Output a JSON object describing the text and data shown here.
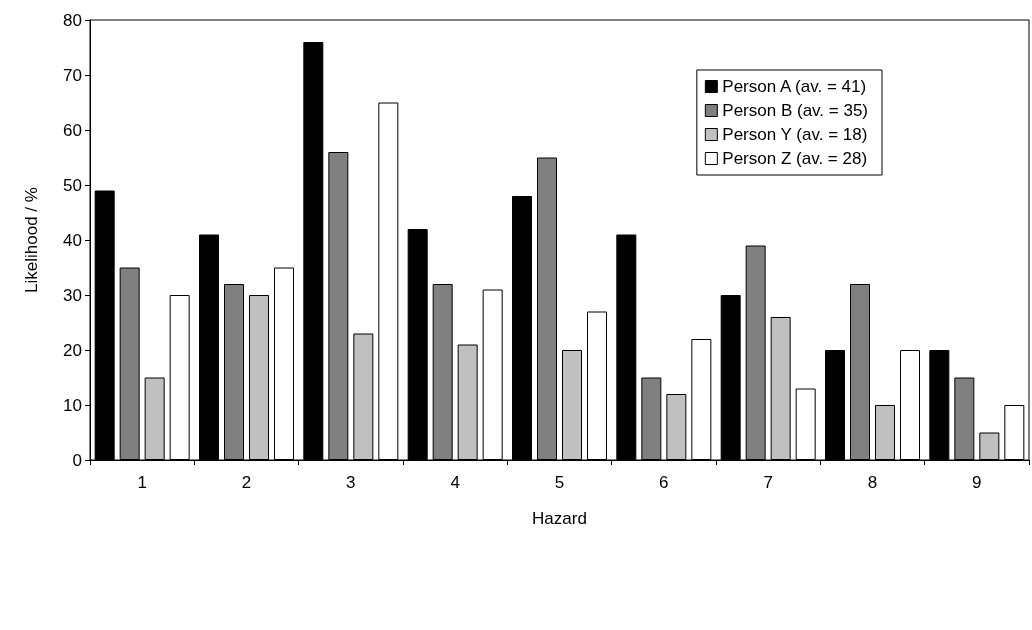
{
  "chart_data": {
    "type": "bar",
    "xlabel": "Hazard",
    "ylabel": "Likelihood / %",
    "categories": [
      "1",
      "2",
      "3",
      "4",
      "5",
      "6",
      "7",
      "8",
      "9"
    ],
    "series": [
      {
        "name": "Person A (av. = 41)",
        "color": "#000000",
        "values": [
          49,
          41,
          76,
          42,
          48,
          41,
          30,
          20,
          20
        ]
      },
      {
        "name": "Person B (av. = 35)",
        "color": "#808080",
        "values": [
          35,
          32,
          56,
          32,
          55,
          15,
          39,
          32,
          15
        ]
      },
      {
        "name": "Person Y (av. = 18)",
        "color": "#c0c0c0",
        "values": [
          15,
          30,
          23,
          21,
          20,
          12,
          26,
          10,
          5
        ]
      },
      {
        "name": "Person Z (av. = 28)",
        "color": "#ffffff",
        "values": [
          30,
          35,
          65,
          31,
          27,
          22,
          13,
          20,
          10
        ]
      }
    ],
    "ylim": [
      0,
      80
    ],
    "yticks": [
      0,
      10,
      20,
      30,
      40,
      50,
      60,
      70,
      80
    ],
    "grid": false,
    "legend": "top right"
  }
}
